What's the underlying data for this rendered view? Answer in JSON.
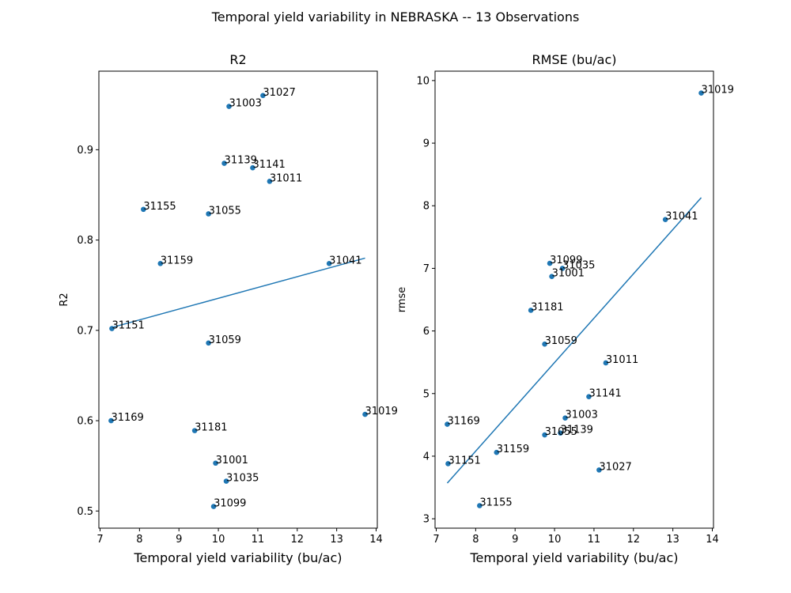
{
  "figure": {
    "title": "Temporal yield variability in NEBRASKA -- 13 Observations"
  },
  "chart_data": [
    {
      "type": "scatter",
      "title": "R2",
      "xlabel": "Temporal yield variability (bu/ac)",
      "ylabel": "R2",
      "xlim": [
        6.97,
        14.03
      ],
      "ylim": [
        0.481,
        0.987
      ],
      "xticks": [
        7,
        8,
        9,
        10,
        11,
        12,
        13,
        14
      ],
      "yticks": [
        0.5,
        0.6,
        0.7,
        0.8,
        0.9
      ],
      "ytick_labels": [
        "0.5",
        "0.6",
        "0.7",
        "0.8",
        "0.9"
      ],
      "color": "#1f77b4",
      "points": [
        {
          "label": "31027",
          "x": 11.13,
          "y": 0.96
        },
        {
          "label": "31003",
          "x": 10.27,
          "y": 0.948
        },
        {
          "label": "31139",
          "x": 10.15,
          "y": 0.885
        },
        {
          "label": "31141",
          "x": 10.87,
          "y": 0.88
        },
        {
          "label": "31011",
          "x": 11.3,
          "y": 0.865
        },
        {
          "label": "31155",
          "x": 8.1,
          "y": 0.834
        },
        {
          "label": "31055",
          "x": 9.75,
          "y": 0.829
        },
        {
          "label": "31159",
          "x": 8.53,
          "y": 0.774
        },
        {
          "label": "31041",
          "x": 12.81,
          "y": 0.774
        },
        {
          "label": "31151",
          "x": 7.3,
          "y": 0.702
        },
        {
          "label": "31059",
          "x": 9.75,
          "y": 0.686
        },
        {
          "label": "31019",
          "x": 13.72,
          "y": 0.607
        },
        {
          "label": "31169",
          "x": 7.28,
          "y": 0.6
        },
        {
          "label": "31181",
          "x": 9.4,
          "y": 0.589
        },
        {
          "label": "31001",
          "x": 9.93,
          "y": 0.553
        },
        {
          "label": "31035",
          "x": 10.2,
          "y": 0.533
        },
        {
          "label": "31099",
          "x": 9.88,
          "y": 0.505
        }
      ],
      "fit_line": {
        "x": [
          7.28,
          13.72
        ],
        "y": [
          0.703,
          0.78
        ]
      }
    },
    {
      "type": "scatter",
      "title": "RMSE (bu/ac)",
      "xlabel": "Temporal yield variability (bu/ac)",
      "ylabel": "rmse",
      "xlim": [
        6.97,
        14.03
      ],
      "ylim": [
        2.85,
        10.15
      ],
      "xticks": [
        7,
        8,
        9,
        10,
        11,
        12,
        13,
        14
      ],
      "yticks": [
        3,
        4,
        5,
        6,
        7,
        8,
        9,
        10
      ],
      "ytick_labels": [
        "3",
        "4",
        "5",
        "6",
        "7",
        "8",
        "9",
        "10"
      ],
      "color": "#1f77b4",
      "points": [
        {
          "label": "31019",
          "x": 13.72,
          "y": 9.8
        },
        {
          "label": "31041",
          "x": 12.81,
          "y": 7.78
        },
        {
          "label": "31099",
          "x": 9.88,
          "y": 7.08
        },
        {
          "label": "31035",
          "x": 10.2,
          "y": 7.0
        },
        {
          "label": "31001",
          "x": 9.93,
          "y": 6.87
        },
        {
          "label": "31181",
          "x": 9.4,
          "y": 6.33
        },
        {
          "label": "31059",
          "x": 9.75,
          "y": 5.79
        },
        {
          "label": "31011",
          "x": 11.3,
          "y": 5.49
        },
        {
          "label": "31141",
          "x": 10.87,
          "y": 4.95
        },
        {
          "label": "31003",
          "x": 10.27,
          "y": 4.61
        },
        {
          "label": "31169",
          "x": 7.28,
          "y": 4.51
        },
        {
          "label": "31139",
          "x": 10.15,
          "y": 4.37
        },
        {
          "label": "31055",
          "x": 9.75,
          "y": 4.34
        },
        {
          "label": "31159",
          "x": 8.53,
          "y": 4.06
        },
        {
          "label": "31151",
          "x": 7.3,
          "y": 3.88
        },
        {
          "label": "31027",
          "x": 11.13,
          "y": 3.78
        },
        {
          "label": "31155",
          "x": 8.1,
          "y": 3.21
        }
      ],
      "fit_line": {
        "x": [
          7.28,
          13.72
        ],
        "y": [
          3.57,
          8.13
        ]
      }
    }
  ]
}
